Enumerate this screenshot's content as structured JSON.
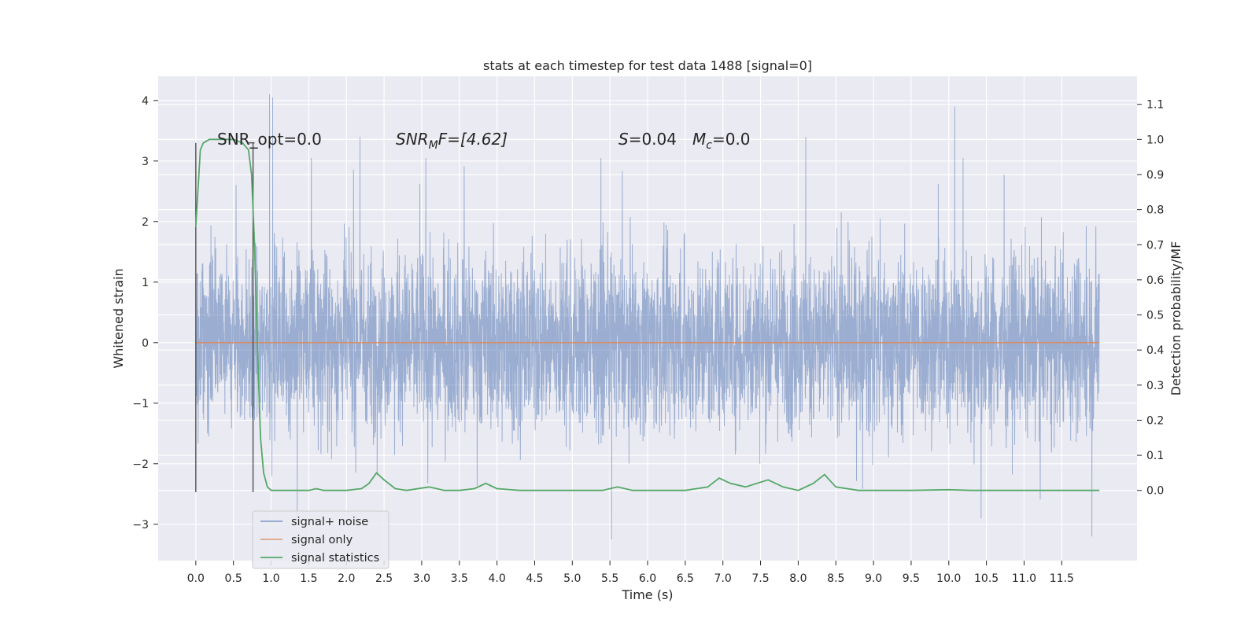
{
  "chart_data": {
    "type": "line",
    "title": "stats at each timestep for test data 1488 [signal=0]",
    "xlabel": "Time (s)",
    "ylabel_left": "Whitened strain",
    "ylabel_right": "Detection probability/MF",
    "xlim": [
      -0.5,
      12.5
    ],
    "ylim_left": [
      -3.6,
      4.4
    ],
    "ylim_right": [
      -0.2,
      1.18
    ],
    "x_ticks": [
      "0.0",
      "0.5",
      "1.0",
      "1.5",
      "2.0",
      "2.5",
      "3.0",
      "3.5",
      "4.0",
      "4.5",
      "5.0",
      "5.5",
      "6.0",
      "6.5",
      "7.0",
      "7.5",
      "8.0",
      "8.5",
      "9.0",
      "9.5",
      "10.0",
      "10.5",
      "11.0",
      "11.5"
    ],
    "y_ticks_left": [
      "−3",
      "−2",
      "−1",
      "0",
      "1",
      "2",
      "3",
      "4"
    ],
    "y_ticks_right": [
      "0.0",
      "0.1",
      "0.2",
      "0.3",
      "0.4",
      "0.5",
      "0.6",
      "0.7",
      "0.8",
      "0.9",
      "1.0",
      "1.1"
    ],
    "grid": true,
    "legend_position": "lower-left",
    "colors": {
      "plot_background": "#eaeaf2",
      "grid": "#ffffff",
      "signal_noise": "#4c72b0",
      "signal_only": "#dd8452",
      "signal_statistics": "#55a868",
      "window_markers": "#444444"
    },
    "annotations": {
      "snr_opt": "SNR_opt=0.0",
      "snr_mf_main": "SNR",
      "snr_mf_sub": "M",
      "snr_mf_rest": "F=[4.62]",
      "s_symbol": "S",
      "s_value": "=0.04",
      "mc_main": "M",
      "mc_sub": "c",
      "mc_value": "=0.0"
    },
    "window_markers_x": [
      0.0,
      0.76
    ],
    "series": [
      {
        "name": "signal+ noise",
        "axis": "left",
        "description_visible": "dense noise between about −2.5 and 2.5 with spikes up to 4.1 and down to −3.3",
        "peaks": [
          {
            "x": 0.98,
            "y": 4.1
          },
          {
            "x": 1.02,
            "y": 4.05
          },
          {
            "x": 2.18,
            "y": 3.4
          },
          {
            "x": 5.52,
            "y": -3.25
          },
          {
            "x": 8.1,
            "y": 3.4
          },
          {
            "x": 10.08,
            "y": 3.9
          },
          {
            "x": 11.9,
            "y": -3.2
          }
        ]
      },
      {
        "name": "signal only",
        "axis": "left",
        "x": [
          0.0,
          12.0
        ],
        "y": [
          0.0,
          0.0
        ]
      },
      {
        "name": "signal statistics",
        "axis": "right",
        "x": [
          0.0,
          0.06,
          0.1,
          0.18,
          0.3,
          0.5,
          0.62,
          0.7,
          0.74,
          0.78,
          0.82,
          0.86,
          0.9,
          0.95,
          1.0,
          1.3,
          1.5,
          1.6,
          1.7,
          2.0,
          2.2,
          2.3,
          2.4,
          2.5,
          2.65,
          2.8,
          3.1,
          3.3,
          3.5,
          3.7,
          3.85,
          4.0,
          4.3,
          4.6,
          5.0,
          5.4,
          5.6,
          5.8,
          6.5,
          6.8,
          6.95,
          7.1,
          7.3,
          7.6,
          7.8,
          8.0,
          8.2,
          8.35,
          8.5,
          8.8,
          9.0,
          9.5,
          10.0,
          10.3,
          11.0,
          12.0
        ],
        "y": [
          0.75,
          0.97,
          0.99,
          1.0,
          1.0,
          1.0,
          0.99,
          0.97,
          0.9,
          0.7,
          0.4,
          0.15,
          0.05,
          0.01,
          0.0,
          0.0,
          0.0,
          0.005,
          0.0,
          0.0,
          0.005,
          0.02,
          0.05,
          0.03,
          0.005,
          0.0,
          0.01,
          0.0,
          0.0,
          0.005,
          0.02,
          0.005,
          0.0,
          0.0,
          0.0,
          0.0,
          0.01,
          0.0,
          0.0,
          0.01,
          0.035,
          0.02,
          0.01,
          0.03,
          0.01,
          0.0,
          0.02,
          0.045,
          0.01,
          0.0,
          0.0,
          0.0,
          0.002,
          0.0,
          0.0,
          0.0
        ]
      }
    ]
  }
}
